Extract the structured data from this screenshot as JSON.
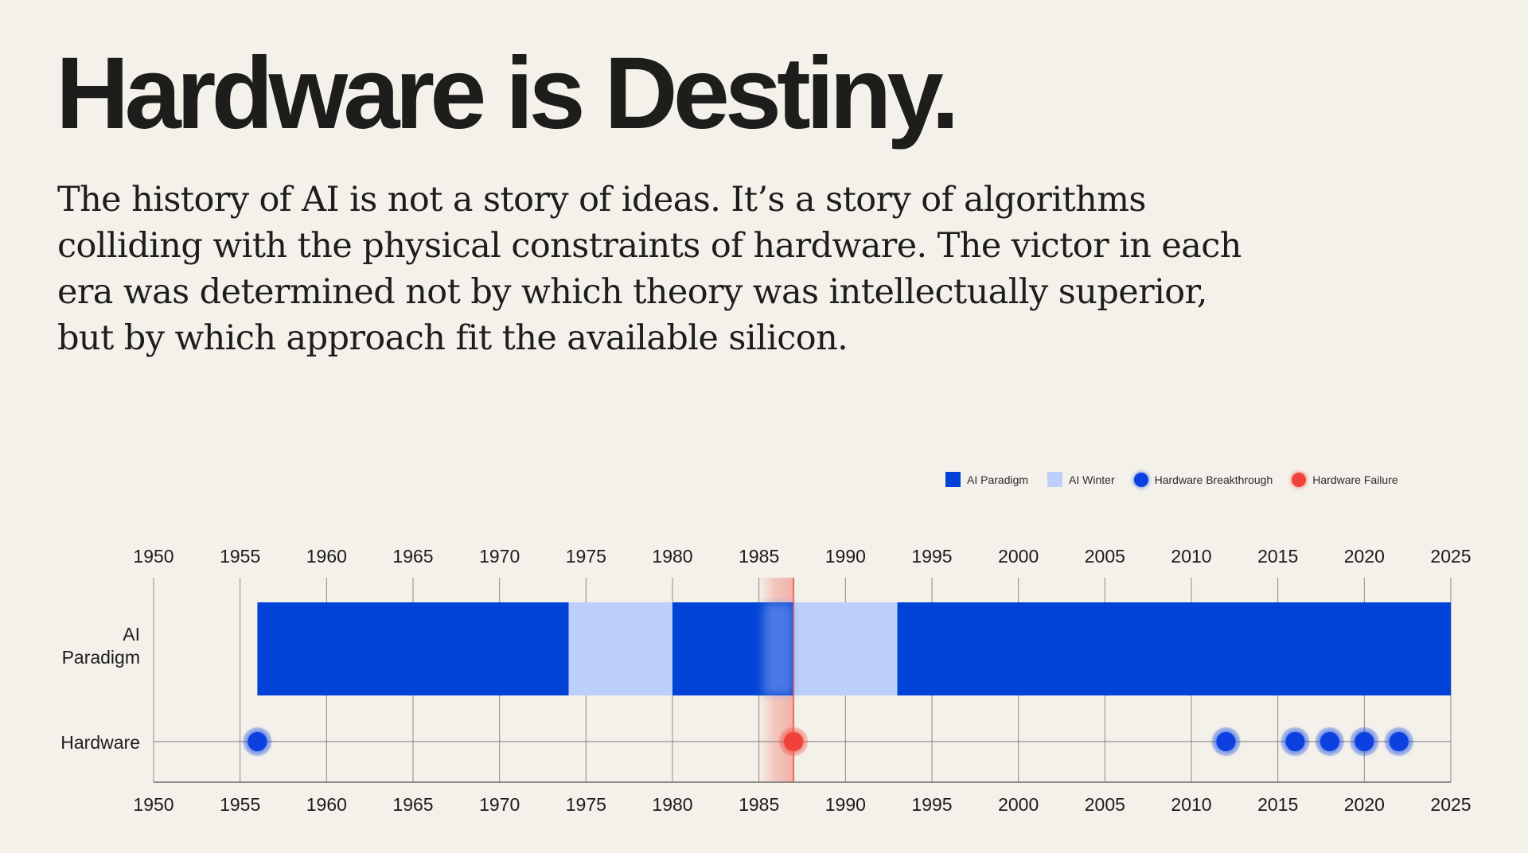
{
  "title": "Hardware is Destiny.",
  "intro": "The history of AI is not a story of ideas. It’s a story of algorithms colliding with the physical constraints of hardware. The victor in each era was determined not by which theory was intellectually superior, but by which approach fit the available silicon.",
  "legend": {
    "paradigm": "AI Paradigm",
    "winter": "AI Winter",
    "breakthrough": "Hardware Breakthrough",
    "failure": "Hardware Failure"
  },
  "colors": {
    "paradigm": "#0043d6",
    "winter": "#bcd0fb",
    "breakthrough": "#0a3fe0",
    "failure": "#f0433a",
    "grid": "#8a8a8a",
    "failure_band": "#f3b4ac"
  },
  "chart_data": {
    "type": "timeline",
    "x_range": [
      1950,
      2025
    ],
    "x_ticks": [
      1950,
      1955,
      1960,
      1965,
      1970,
      1975,
      1980,
      1985,
      1990,
      1995,
      2000,
      2005,
      2010,
      2015,
      2020,
      2025
    ],
    "rows": [
      "AI Paradigm",
      "Hardware"
    ],
    "paradigm_row": {
      "label_lines": [
        "AI",
        "Paradigm"
      ],
      "segments": [
        {
          "type": "paradigm",
          "start": 1956,
          "end": 1974
        },
        {
          "type": "winter",
          "start": 1974,
          "end": 1980
        },
        {
          "type": "paradigm",
          "start": 1980,
          "end": 1987
        },
        {
          "type": "winter",
          "start": 1987,
          "end": 1993
        },
        {
          "type": "paradigm",
          "start": 1993,
          "end": 2025
        }
      ]
    },
    "hardware_row": {
      "label": "Hardware",
      "events": [
        {
          "year": 1956,
          "type": "breakthrough"
        },
        {
          "year": 1987,
          "type": "failure"
        },
        {
          "year": 2012,
          "type": "breakthrough"
        },
        {
          "year": 2016,
          "type": "breakthrough"
        },
        {
          "year": 2018,
          "type": "breakthrough"
        },
        {
          "year": 2020,
          "type": "breakthrough"
        },
        {
          "year": 2022,
          "type": "breakthrough"
        }
      ]
    },
    "failure_band": {
      "start": 1985,
      "end": 1987
    },
    "legend_position": "top-right",
    "grid": true
  }
}
